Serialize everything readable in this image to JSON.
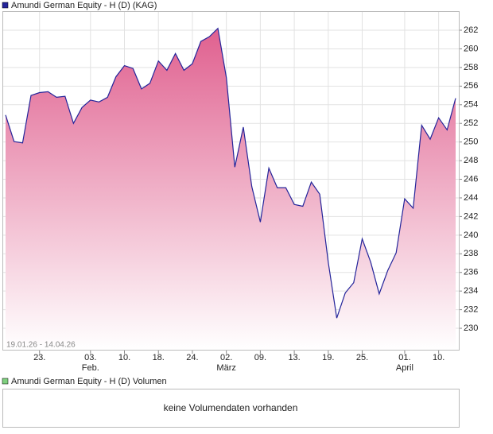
{
  "chart_data": {
    "type": "area",
    "title": "Amundi German Equity - H (D) (KAG)",
    "range_label": "19.01.26 - 14.04.26",
    "categories": [
      null,
      null,
      null,
      null,
      "23.",
      null,
      null,
      null,
      null,
      null,
      "03.",
      null,
      null,
      null,
      "10.",
      null,
      null,
      null,
      "18.",
      null,
      null,
      null,
      "24.",
      null,
      null,
      null,
      "02.",
      null,
      null,
      null,
      "09.",
      null,
      null,
      null,
      "13.",
      null,
      null,
      null,
      "19.",
      null,
      null,
      null,
      "25.",
      null,
      null,
      null,
      null,
      "01.",
      null,
      null,
      null,
      "10.",
      null,
      null
    ],
    "category_sublabels": [
      null,
      null,
      null,
      null,
      null,
      null,
      null,
      null,
      null,
      null,
      "Feb.",
      null,
      null,
      null,
      null,
      null,
      null,
      null,
      null,
      null,
      null,
      null,
      null,
      null,
      null,
      null,
      "März",
      null,
      null,
      null,
      null,
      null,
      null,
      null,
      null,
      null,
      null,
      null,
      null,
      null,
      null,
      null,
      null,
      null,
      null,
      null,
      null,
      "April",
      null,
      null,
      null,
      null,
      null,
      null
    ],
    "series": [
      {
        "name": "Amundi German Equity - H (D)",
        "color": "#24249a",
        "values": [
          252.9,
          250.05,
          249.9,
          255.0,
          255.3,
          255.4,
          254.8,
          254.9,
          252.0,
          253.7,
          254.5,
          254.3,
          254.8,
          257.0,
          258.2,
          257.9,
          255.7,
          256.3,
          258.7,
          257.7,
          259.5,
          257.7,
          258.4,
          260.8,
          261.3,
          262.2,
          256.9,
          247.3,
          251.6,
          245.2,
          241.4,
          247.2,
          245.1,
          245.1,
          243.3,
          243.1,
          245.7,
          244.4,
          237.1,
          231.1,
          233.8,
          234.9,
          239.6,
          237.1,
          233.7,
          236.2,
          238.1,
          243.9,
          242.9,
          251.8,
          250.3,
          252.6,
          251.3,
          254.7
        ]
      }
    ],
    "fill_top": "#e0608f",
    "ylim": [
      227.7,
      264.05
    ],
    "yticks": [
      230,
      232,
      234,
      236,
      238,
      240,
      242,
      244,
      246,
      248,
      250,
      252,
      254,
      256,
      258,
      260,
      262
    ],
    "grid": true,
    "volume": {
      "title": "Amundi German Equity - H (D) Volumen",
      "message": "keine Volumendaten vorhanden"
    }
  }
}
